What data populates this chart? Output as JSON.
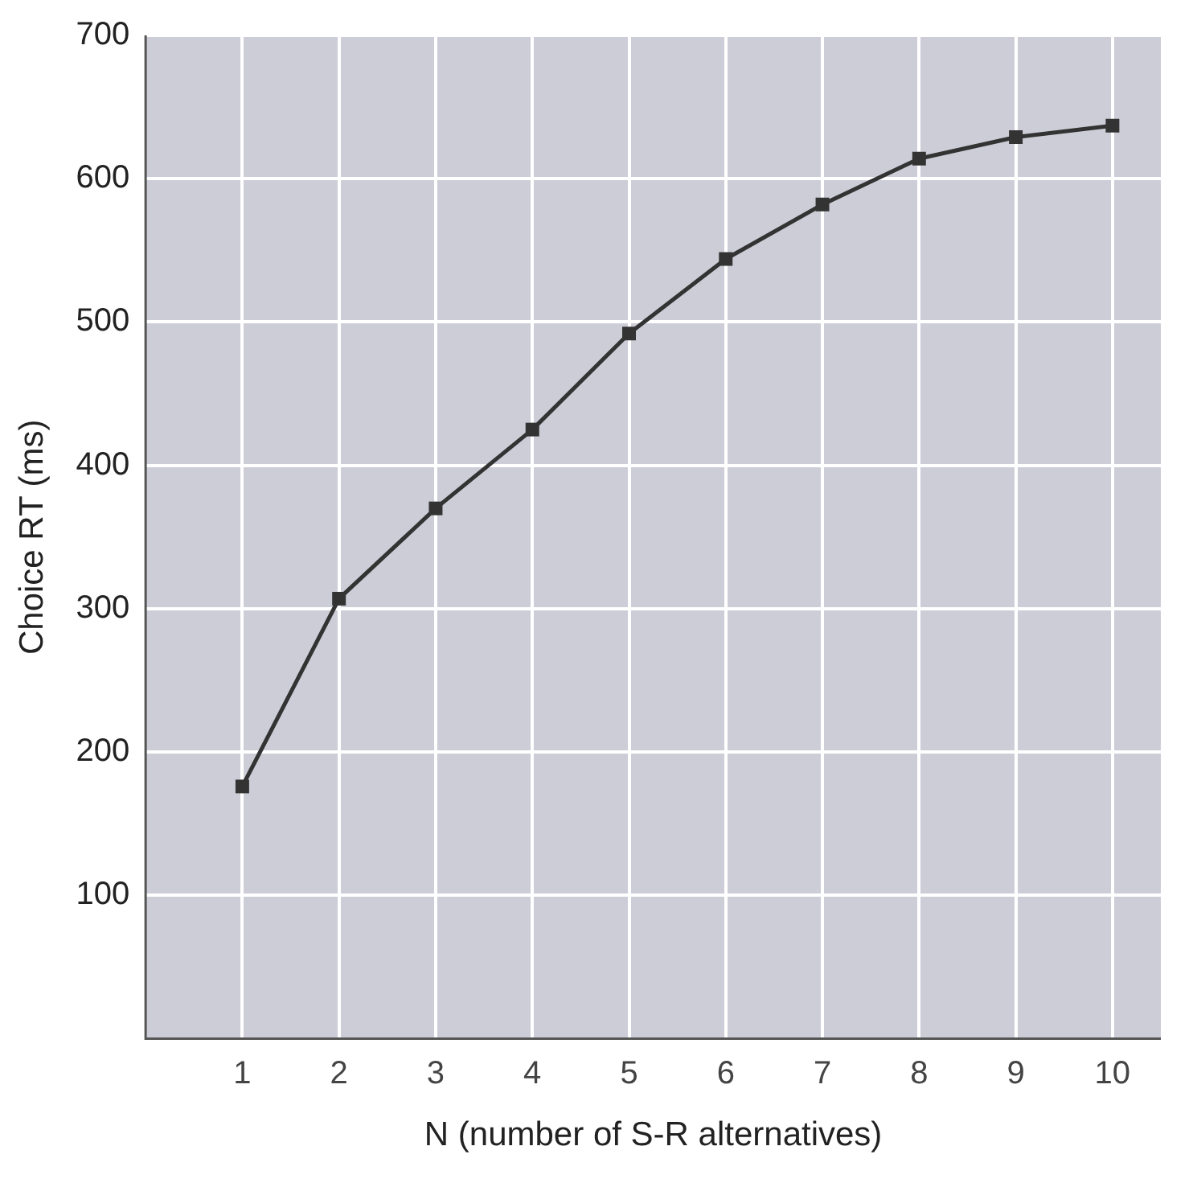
{
  "chart_data": {
    "type": "line",
    "xlabel": "N (number of S-R alternatives)",
    "ylabel": "Choice RT (ms)",
    "x": [
      1,
      2,
      3,
      4,
      5,
      6,
      7,
      8,
      9,
      10
    ],
    "series": [
      {
        "color": "#333333",
        "values": [
          176,
          307,
          370,
          425,
          492,
          544,
          582,
          614,
          629,
          637
        ]
      }
    ],
    "xlim": [
      0,
      10.5
    ],
    "xticks": [
      1,
      2,
      3,
      4,
      5,
      6,
      7,
      8,
      9,
      10
    ],
    "ylim": [
      0,
      700
    ],
    "yticks": [
      100,
      200,
      300,
      400,
      500,
      600,
      700
    ],
    "grid": true,
    "marker": "square",
    "line_style": "solid",
    "legend": false
  }
}
